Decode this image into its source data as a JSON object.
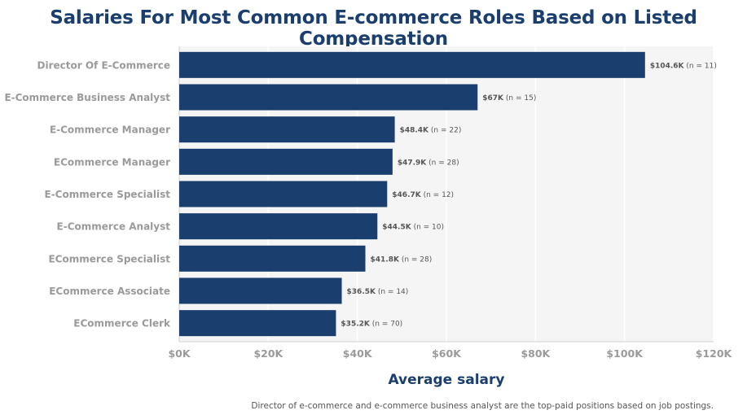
{
  "colors": {
    "bar": "#1a3e6e",
    "plot_bg": "#f5f5f5",
    "grid": "#ffffff",
    "tick_text": "#9a9a9a",
    "label_text": "#555555"
  },
  "chart_data": {
    "type": "bar",
    "orientation": "horizontal",
    "title": "Salaries For Most Common E-commerce Roles Based on Listed Compensation",
    "xlabel": "Average salary",
    "ylabel": "",
    "xlim": [
      0,
      120000
    ],
    "xticks": [
      0,
      20000,
      40000,
      60000,
      80000,
      100000,
      120000
    ],
    "xtick_labels": [
      "$0K",
      "$20K",
      "$40K",
      "$60K",
      "$80K",
      "$100K",
      "$120K"
    ],
    "grid": true,
    "categories": [
      "Director Of E-Commerce",
      "E-Commerce Business Analyst",
      "E-Commerce Manager",
      "ECommerce Manager",
      "E-Commerce Specialist",
      "E-Commerce Analyst",
      "ECommerce Specialist",
      "ECommerce Associate",
      "ECommerce Clerk"
    ],
    "values": [
      104600,
      67000,
      48400,
      47900,
      46700,
      44500,
      41800,
      36500,
      35200
    ],
    "value_labels": [
      "$104.6K",
      "$67K",
      "$48.4K",
      "$47.9K",
      "$46.7K",
      "$44.5K",
      "$41.8K",
      "$36.5K",
      "$35.2K"
    ],
    "counts": [
      "(n = 11)",
      "(n = 15)",
      "(n = 22)",
      "(n = 28)",
      "(n = 12)",
      "(n = 10)",
      "(n = 28)",
      "(n = 14)",
      "(n = 70)"
    ]
  },
  "footnote": "Director of e-commerce and e-commerce business analyst are the top-paid positions based on job postings."
}
